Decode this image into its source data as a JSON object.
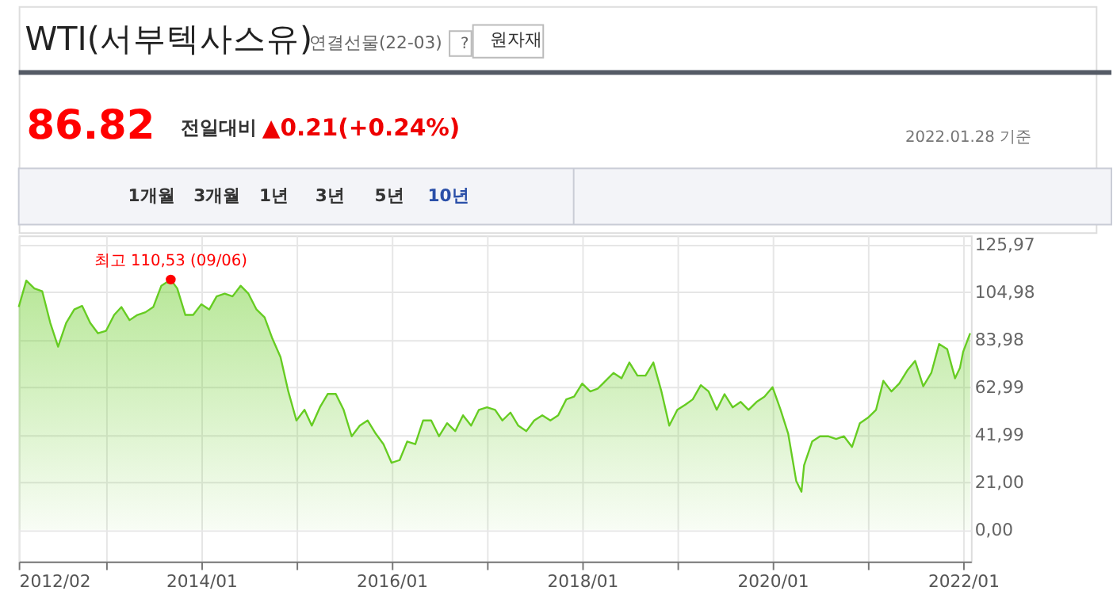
{
  "chart_data": {
    "type": "area",
    "title": "WTI(서부텍사스유)",
    "subtitle": "연결선물(22-03)",
    "annotations": [
      "?",
      "원자재",
      "86.82",
      "전일대비",
      "▲0.21(+0.24%)",
      "2022.01.28 기준",
      "1개월",
      "3개월",
      "1년",
      "3년",
      "5년",
      "10년",
      {
        "text": "최고 110,53 (09/06)",
        "x": "2013-09-06",
        "y": 110.53
      }
    ],
    "x": [
      "2012-02",
      "2012-03",
      "2012-04",
      "2012-05",
      "2012-06",
      "2012-07",
      "2012-08",
      "2012-09",
      "2012-10",
      "2012-11",
      "2012-12",
      "2013-01",
      "2013-02",
      "2013-03",
      "2013-04",
      "2013-05",
      "2013-06",
      "2013-07",
      "2013-08",
      "2013-09-06",
      "2013-10",
      "2013-11",
      "2013-12",
      "2014-01",
      "2014-02",
      "2014-03",
      "2014-04",
      "2014-05",
      "2014-06",
      "2014-07",
      "2014-08",
      "2014-09",
      "2014-10",
      "2014-11",
      "2014-12",
      "2015-01",
      "2015-02",
      "2015-03",
      "2015-04",
      "2015-05",
      "2015-06",
      "2015-07",
      "2015-08",
      "2015-09",
      "2015-10",
      "2015-11",
      "2015-12",
      "2016-01",
      "2016-02",
      "2016-03",
      "2016-04",
      "2016-05",
      "2016-06",
      "2016-07",
      "2016-08",
      "2016-09",
      "2016-10",
      "2016-11",
      "2016-12",
      "2017-01",
      "2017-02",
      "2017-03",
      "2017-04",
      "2017-05",
      "2017-06",
      "2017-07",
      "2017-08",
      "2017-09",
      "2017-10",
      "2017-11",
      "2017-12",
      "2018-01",
      "2018-02",
      "2018-03",
      "2018-04",
      "2018-05",
      "2018-06",
      "2018-07",
      "2018-08",
      "2018-09",
      "2018-10",
      "2018-11",
      "2018-12",
      "2019-01",
      "2019-02",
      "2019-03",
      "2019-04",
      "2019-05",
      "2019-06",
      "2019-07",
      "2019-08",
      "2019-09",
      "2019-10",
      "2019-11",
      "2019-12",
      "2020-01",
      "2020-02",
      "2020-03",
      "2020-04",
      "2020-04-21",
      "2020-05",
      "2020-06",
      "2020-07",
      "2020-08",
      "2020-09",
      "2020-10",
      "2020-11",
      "2020-12",
      "2021-01",
      "2021-02",
      "2021-03",
      "2021-04",
      "2021-05",
      "2021-06",
      "2021-07",
      "2021-08",
      "2021-09",
      "2021-10",
      "2021-11",
      "2021-12",
      "2021-12-20",
      "2022-01",
      "2022-01-28"
    ],
    "series": [
      {
        "color": "#66cc22",
        "values": [
          98.4,
          110.1,
          106.6,
          105.4,
          91.4,
          80.9,
          91.4,
          97.3,
          98.9,
          91.4,
          86.8,
          87.9,
          94.9,
          98.4,
          92.6,
          94.9,
          96.1,
          98.4,
          107.8,
          110.53,
          106.6,
          94.9,
          94.9,
          99.6,
          97.3,
          103.1,
          104.3,
          103.1,
          107.8,
          104.3,
          97.3,
          93.8,
          84.4,
          76.3,
          61.1,
          48.3,
          53.0,
          46.0,
          54.1,
          60.0,
          60.0,
          53.0,
          41.3,
          46.0,
          48.3,
          42.5,
          37.8,
          29.6,
          30.8,
          39.0,
          37.8,
          48.3,
          48.3,
          41.3,
          47.1,
          43.6,
          50.6,
          46.0,
          53.0,
          54.1,
          53.0,
          48.3,
          51.8,
          46.0,
          43.6,
          48.3,
          50.6,
          48.3,
          50.6,
          57.6,
          58.8,
          64.6,
          61.1,
          62.3,
          65.8,
          69.3,
          66.9,
          73.9,
          68.1,
          68.1,
          73.9,
          61.1,
          46.0,
          53.0,
          55.3,
          57.6,
          63.9,
          61.1,
          53.0,
          59.9,
          54.1,
          56.5,
          53.0,
          56.5,
          58.8,
          63.0,
          53.0,
          42.5,
          21.5,
          16.8,
          28.5,
          39.0,
          41.3,
          41.3,
          40.1,
          41.3,
          36.6,
          47.1,
          49.5,
          53.0,
          65.8,
          61.1,
          64.6,
          70.4,
          74.6,
          63.4,
          69.3,
          82.1,
          79.8,
          66.9,
          71.6,
          78.6,
          86.82
        ]
      }
    ],
    "xlim": [
      "2012-02-01",
      "2022-01-31"
    ],
    "ylim": [
      -14,
      130
    ],
    "xticks": [
      {
        "value": "2012-02-01",
        "label": "2012/02"
      },
      {
        "value": "2013-01-01",
        "label": null
      },
      {
        "value": "2014-01-01",
        "label": "2014/01"
      },
      {
        "value": "2015-01-01",
        "label": null
      },
      {
        "value": "2016-01-01",
        "label": "2016/01"
      },
      {
        "value": "2017-01-01",
        "label": null
      },
      {
        "value": "2018-01-01",
        "label": "2018/01"
      },
      {
        "value": "2019-01-01",
        "label": null
      },
      {
        "value": "2020-01-01",
        "label": "2020/01"
      },
      {
        "value": "2021-01-01",
        "label": null
      },
      {
        "value": "2022-01-01",
        "label": "2022/01"
      }
    ],
    "yticks": [
      {
        "value": 0,
        "label": "0,00"
      },
      {
        "value": 21.0,
        "label": "21,00"
      },
      {
        "value": 41.99,
        "label": "41,99"
      },
      {
        "value": 62.99,
        "label": "62,99"
      },
      {
        "value": 83.98,
        "label": "83,98"
      },
      {
        "value": 104.98,
        "label": "104,98"
      },
      {
        "value": 125.97,
        "label": "125,97"
      }
    ],
    "grid": true
  }
}
